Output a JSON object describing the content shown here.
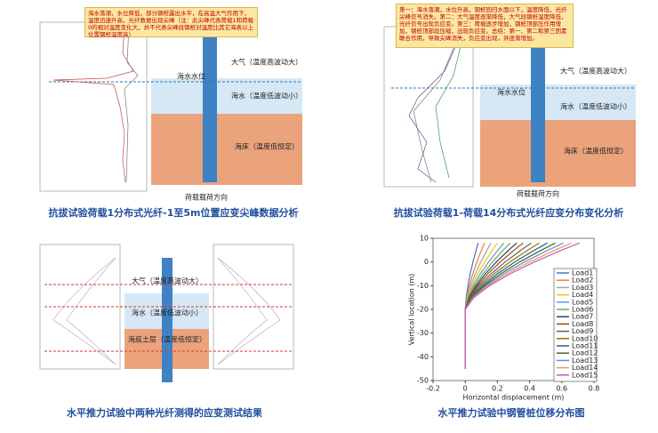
{
  "panels": [
    {
      "caption": "抗拔试验荷载1分布式光纤-1至5m位置应变尖峰数据分析",
      "note": "海水落潮，水位降低，部分钢桩露出水平，在高温大气作用下，温度迅速升高，光纤数据出现尖峰（注：此尖峰代表荷载1和荷载0的相对温度变化大，并不代表尖峰段钢桩对温度比其它海表以上位置钢桩温度高）",
      "labels": [
        "大气（温度高波动大）",
        "海水水位",
        "海水（温度低波动小）",
        "海床（温度低恒定）",
        "荷载载荷方向"
      ]
    },
    {
      "caption": "抗拔试验荷载1-荷载14分布式光纤应变分布变化分析",
      "note": "第一：海水落潮，水位升高，钢桩回归水面以下，温度降低，光纤尖峰信号消失。第二：大气温度逐渐降低，大气段钢桩温度降低，光纤信号出现负应变。第三：荷载逐步增加，钢桩顶部压作用增加，钢桩顶部段压缩，出现负应变。总结：第一、第二和第三因素联合作用，导致尖峰消失，负应变出现，并逐渐增加。",
      "labels": [
        "大气（温度高波动大）",
        "海水水位",
        "海水（温度低波动小）",
        "海床（温度低恒定）",
        "荷载载荷方向"
      ]
    },
    {
      "caption": "水平推力试验中两种光纤测得的应变测试结果",
      "labels": [
        "大气（温度高波动大）",
        "海水（温度低波动小）",
        "海底土层（温度低恒定）"
      ]
    }
  ],
  "chart_data": {
    "type": "line",
    "caption": "水平推力试验中钢管桩位移分布图",
    "x_label": "Horizontal displacement (m)",
    "y_label": "Vertical location (m)",
    "xlim": [
      -0.2,
      0.8
    ],
    "xticks": [
      -0.2,
      0,
      0.2,
      0.4,
      0.6,
      0.8
    ],
    "ylim": [
      -50,
      10
    ],
    "yticks": [
      -50,
      -40,
      -30,
      -20,
      -10,
      0,
      10
    ],
    "y": [
      -45,
      -20,
      -15,
      -10,
      -5,
      0,
      5,
      8
    ],
    "series": [
      {
        "name": "Load1",
        "color": "#4472c4",
        "x": [
          0,
          0,
          0.006,
          0.017,
          0.031,
          0.048,
          0.068,
          0.08
        ]
      },
      {
        "name": "Load2",
        "color": "#ed7d31",
        "x": [
          0,
          0,
          0.009,
          0.026,
          0.047,
          0.072,
          0.101,
          0.12
        ]
      },
      {
        "name": "Load3",
        "color": "#a5a5a5",
        "x": [
          0,
          0,
          0.012,
          0.034,
          0.063,
          0.097,
          0.135,
          0.16
        ]
      },
      {
        "name": "Load4",
        "color": "#ffc000",
        "x": [
          0,
          0,
          0.015,
          0.043,
          0.078,
          0.121,
          0.169,
          0.2
        ]
      },
      {
        "name": "Load5",
        "color": "#5b9bd5",
        "x": [
          0,
          0,
          0.018,
          0.051,
          0.094,
          0.145,
          0.203,
          0.24
        ]
      },
      {
        "name": "Load6",
        "color": "#70ad47",
        "x": [
          0,
          0,
          0.021,
          0.06,
          0.11,
          0.169,
          0.236,
          0.28
        ]
      },
      {
        "name": "Load7",
        "color": "#264478",
        "x": [
          0,
          0,
          0.024,
          0.068,
          0.125,
          0.193,
          0.27,
          0.32
        ]
      },
      {
        "name": "Load8",
        "color": "#9e480e",
        "x": [
          0,
          0,
          0.027,
          0.077,
          0.141,
          0.217,
          0.304,
          0.36
        ]
      },
      {
        "name": "Load9",
        "color": "#636363",
        "x": [
          0,
          0,
          0.031,
          0.087,
          0.161,
          0.248,
          0.346,
          0.41
        ]
      },
      {
        "name": "Load10",
        "color": "#997300",
        "x": [
          0,
          0,
          0.035,
          0.098,
          0.18,
          0.278,
          0.388,
          0.46
        ]
      },
      {
        "name": "Load11",
        "color": "#255e91",
        "x": [
          0,
          0,
          0.039,
          0.109,
          0.2,
          0.308,
          0.43,
          0.51
        ]
      },
      {
        "name": "Load12",
        "color": "#43682b",
        "x": [
          0,
          0,
          0.042,
          0.119,
          0.22,
          0.338,
          0.473,
          0.56
        ]
      },
      {
        "name": "Load13",
        "color": "#698ed0",
        "x": [
          0,
          0,
          0.046,
          0.13,
          0.239,
          0.368,
          0.515,
          0.61
        ]
      },
      {
        "name": "Load14",
        "color": "#f1975a",
        "x": [
          0,
          0,
          0.05,
          0.141,
          0.259,
          0.399,
          0.557,
          0.66
        ]
      },
      {
        "name": "Load15",
        "color": "#c55ab8",
        "x": [
          0,
          0,
          0.054,
          0.151,
          0.278,
          0.429,
          0.599,
          0.71
        ]
      }
    ]
  }
}
